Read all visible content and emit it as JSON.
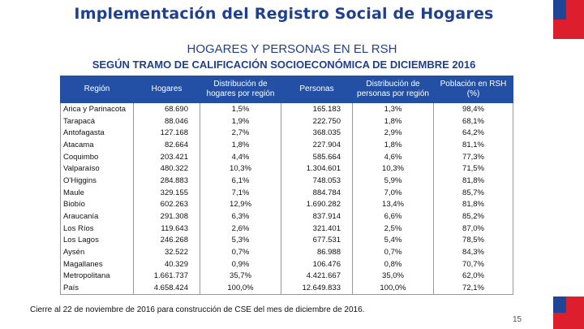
{
  "title": "Implementación del Registro Social de Hogares",
  "subtitle1": "HOGARES Y PERSONAS EN EL RSH",
  "subtitle2": "SEGÚN TRAMO DE CALIFICACIÓN SOCIOECONÓMICA DE DICIEMBRE 2016",
  "table": {
    "headers": [
      "Región",
      "Hogares",
      "Distribución de hogares por región",
      "Personas",
      "Distribución de personas por región",
      "Población en RSH (%)"
    ],
    "rows": [
      [
        "Arica y Parinacota",
        "68.690",
        "1,5%",
        "165.183",
        "1,3%",
        "98,4%"
      ],
      [
        "Tarapacá",
        "88.046",
        "1,9%",
        "222.750",
        "1,8%",
        "68,1%"
      ],
      [
        "Antofagasta",
        "127.168",
        "2,7%",
        "368.035",
        "2,9%",
        "64,2%"
      ],
      [
        "Atacama",
        "82.664",
        "1,8%",
        "227.904",
        "1,8%",
        "81,1%"
      ],
      [
        "Coquimbo",
        "203.421",
        "4,4%",
        "585.664",
        "4,6%",
        "77,3%"
      ],
      [
        "Valparaíso",
        "480.322",
        "10,3%",
        "1.304.601",
        "10,3%",
        "71,5%"
      ],
      [
        "O'Higgins",
        "284.883",
        "6,1%",
        "748.053",
        "5,9%",
        "81,8%"
      ],
      [
        "Maule",
        "329.155",
        "7,1%",
        "884.784",
        "7,0%",
        "85,7%"
      ],
      [
        "Biobío",
        "602.263",
        "12,9%",
        "1.690.282",
        "13,4%",
        "81,8%"
      ],
      [
        "Araucanía",
        "291.308",
        "6,3%",
        "837.914",
        "6,6%",
        "85,2%"
      ],
      [
        "Los Ríos",
        "119.643",
        "2,6%",
        "321.401",
        "2,5%",
        "87,0%"
      ],
      [
        "Los Lagos",
        "246.268",
        "5,3%",
        "677.531",
        "5,4%",
        "78,5%"
      ],
      [
        "Aysén",
        "32.522",
        "0,7%",
        "86.988",
        "0,7%",
        "84,3%"
      ],
      [
        "Magallanes",
        "40.329",
        "0,9%",
        "106.476",
        "0,8%",
        "70,7%"
      ],
      [
        "Metropolitana",
        "1.661.737",
        "35,7%",
        "4.421.667",
        "35,0%",
        "62,0%"
      ],
      [
        "País",
        "4.658.424",
        "100,0%",
        "12.649.833",
        "100,0%",
        "72,1%"
      ]
    ]
  },
  "footnote": "Cierre al 22 de noviembre de 2016 para construcción de CSE del mes de diciembre de 2016.",
  "page_number": "15",
  "colors": {
    "title": "#1f3f8f",
    "header_bg": "#2350a5",
    "flag_blue": "#1f4596",
    "flag_red": "#dd1f2d"
  }
}
